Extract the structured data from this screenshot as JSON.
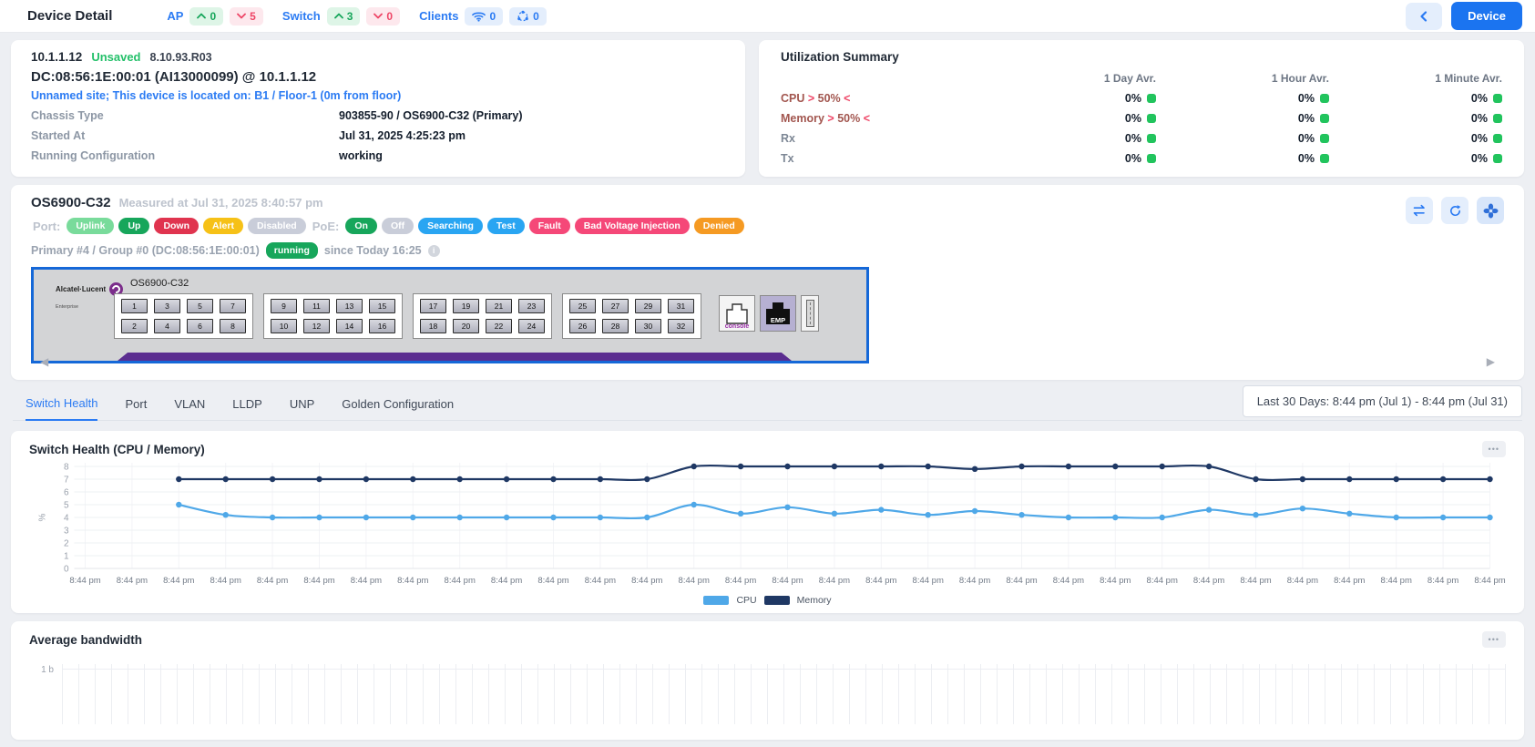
{
  "header": {
    "title": "Device Detail",
    "device_button": "Device",
    "stats": {
      "ap_label": "AP",
      "ap_up": "0",
      "ap_down": "5",
      "switch_label": "Switch",
      "switch_up": "3",
      "switch_down": "0",
      "clients_label": "Clients",
      "clients_wireless": "0",
      "clients_mesh": "0"
    }
  },
  "device_card": {
    "ip": "10.1.1.12",
    "save_status": "Unsaved",
    "version": "8.10.93.R03",
    "name": "DC:08:56:1E:00:01 (AI13000099) @ 10.1.1.12",
    "location": "Unnamed site; This device is located on: B1 / Floor-1 (0m from floor)",
    "rows": [
      {
        "label": "Chassis Type",
        "value": "903855-90 / OS6900-C32 (Primary)"
      },
      {
        "label": "Started At",
        "value": "Jul 31, 2025 4:25:23 pm"
      },
      {
        "label": "Running Configuration",
        "value": "working"
      }
    ]
  },
  "utilization": {
    "title": "Utilization Summary",
    "columns": [
      "1 Day Avr.",
      "1 Hour Avr.",
      "1 Minute Avr."
    ],
    "rows": [
      {
        "label": "CPU",
        "t_open": ">",
        "t_value": "50%",
        "t_close": "<",
        "values": [
          "0%",
          "0%",
          "0%"
        ]
      },
      {
        "label": "Memory",
        "t_open": ">",
        "t_value": "50%",
        "t_close": "<",
        "values": [
          "0%",
          "0%",
          "0%"
        ]
      },
      {
        "label": "Rx",
        "t_open": "",
        "t_value": "",
        "t_close": "",
        "values": [
          "0%",
          "0%",
          "0%"
        ]
      },
      {
        "label": "Tx",
        "t_open": "",
        "t_value": "",
        "t_close": "",
        "values": [
          "0%",
          "0%",
          "0%"
        ]
      }
    ],
    "status_color": "#21c45d"
  },
  "switch_panel": {
    "model": "OS6900-C32",
    "measured": "Measured at Jul 31, 2025 8:40:57 pm",
    "port_label": "Port:",
    "port_badges": [
      {
        "label": "Uplink",
        "color": "#79db9b"
      },
      {
        "label": "Up",
        "color": "#17a65b"
      },
      {
        "label": "Down",
        "color": "#e0344f"
      },
      {
        "label": "Alert",
        "color": "#f6c117"
      },
      {
        "label": "Disabled",
        "color": "#c9cdd9"
      }
    ],
    "poe_label": "PoE:",
    "poe_badges": [
      {
        "label": "On",
        "color": "#17a65b"
      },
      {
        "label": "Off",
        "color": "#c9cdd9"
      },
      {
        "label": "Searching",
        "color": "#29a5f2"
      },
      {
        "label": "Test",
        "color": "#29a5f2"
      },
      {
        "label": "Fault",
        "color": "#f54878"
      },
      {
        "label": "Bad Voltage Injection",
        "color": "#f54878"
      },
      {
        "label": "Denied",
        "color": "#f59a23"
      }
    ],
    "chassis_prefix": "Primary #4 / Group #0 (DC:08:56:1E:00:01)",
    "chassis_badge": "running",
    "chassis_suffix": "since Today 16:25",
    "brand": "Alcatel·Lucent",
    "brand_sub": "Enterprise",
    "device_label": "OS6900-C32",
    "port_groups": [
      {
        "top": [
          "1",
          "3",
          "5",
          "7"
        ],
        "bottom": [
          "2",
          "4",
          "6",
          "8"
        ]
      },
      {
        "top": [
          "9",
          "11",
          "13",
          "15"
        ],
        "bottom": [
          "10",
          "12",
          "14",
          "16"
        ]
      },
      {
        "top": [
          "17",
          "19",
          "21",
          "23"
        ],
        "bottom": [
          "18",
          "20",
          "22",
          "24"
        ]
      },
      {
        "top": [
          "25",
          "27",
          "29",
          "31"
        ],
        "bottom": [
          "26",
          "28",
          "30",
          "32"
        ]
      }
    ],
    "console_label": "console",
    "emp_label": "EMP"
  },
  "tabs": [
    {
      "label": "Switch Health",
      "active": true
    },
    {
      "label": "Port",
      "active": false
    },
    {
      "label": "VLAN",
      "active": false
    },
    {
      "label": "LLDP",
      "active": false
    },
    {
      "label": "UNP",
      "active": false
    },
    {
      "label": "Golden Configuration",
      "active": false
    }
  ],
  "date_range": "Last 30 Days: 8:44 pm (Jul 1) - 8:44 pm (Jul 31)",
  "health_card": {
    "title": "Switch Health (CPU / Memory)",
    "more_label": "•••"
  },
  "bandwidth_card": {
    "title": "Average bandwidth",
    "more_label": "•••",
    "ytick": "1 b"
  },
  "chart_data": [
    {
      "type": "line",
      "title": "Switch Health (CPU / Memory)",
      "ylabel": "%",
      "ylim": [
        0,
        8
      ],
      "yticks": [
        0,
        1,
        2,
        3,
        4,
        5,
        6,
        7,
        8
      ],
      "x_tick_label": "8:44 pm",
      "x_tick_count": 31,
      "grid": true,
      "legend_position": "bottom",
      "series_start_tick": 2,
      "series": [
        {
          "name": "CPU",
          "color": "#4fa8e8",
          "values": [
            5,
            4.2,
            4,
            4,
            4,
            4,
            4,
            4,
            4,
            4,
            4,
            5,
            4.3,
            4.8,
            4.3,
            4.6,
            4.2,
            4.5,
            4.2,
            4,
            4,
            4,
            4.6,
            4.2,
            4.7,
            4.3,
            4,
            4,
            4
          ]
        },
        {
          "name": "Memory",
          "color": "#1f3864",
          "values": [
            7,
            7,
            7,
            7,
            7,
            7,
            7,
            7,
            7,
            7,
            7,
            8,
            8,
            8,
            8,
            8,
            8,
            7.8,
            8,
            8,
            8,
            8,
            8,
            7,
            7,
            7,
            7,
            7,
            7
          ]
        }
      ]
    },
    {
      "type": "line",
      "title": "Average bandwidth",
      "ylabel": "",
      "visible_yticks": [
        "1 b"
      ],
      "series": []
    }
  ]
}
